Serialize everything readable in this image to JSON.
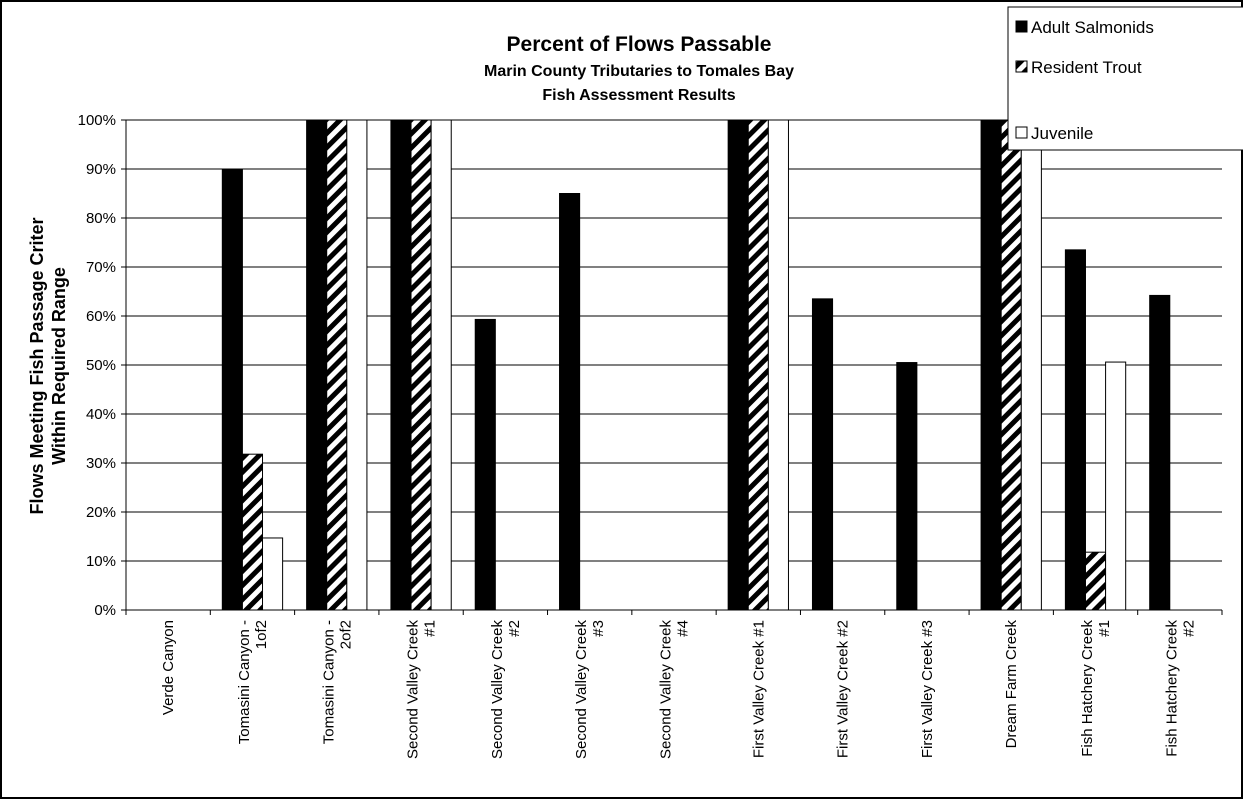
{
  "chart_data": {
    "type": "bar",
    "title": "Percent of Flows Passable",
    "subtitle": [
      "Marin County Tributaries to Tomales Bay",
      "Fish Assessment Results"
    ],
    "ylabel": [
      "Flows Meeting Fish Passage Criter",
      "Within Required Range"
    ],
    "xlabel": "",
    "ylim": [
      0,
      100
    ],
    "yticks": [
      0,
      10,
      20,
      30,
      40,
      50,
      60,
      70,
      80,
      90,
      100
    ],
    "ytick_labels": [
      "0%",
      "10%",
      "20%",
      "30%",
      "40%",
      "50%",
      "60%",
      "70%",
      "80%",
      "90%",
      "100%"
    ],
    "grid": "horizontal",
    "legend_position": "top-right",
    "categories": [
      [
        "Verde Canyon"
      ],
      [
        "Tomasini Canyon -",
        "1of2"
      ],
      [
        "Tomasini Canyon -",
        "2of2"
      ],
      [
        "Second Valley Creek",
        "#1"
      ],
      [
        "Second Valley Creek",
        "#2"
      ],
      [
        "Second Valley Creek",
        "#3"
      ],
      [
        "Second Valley Creek",
        "#4"
      ],
      [
        "First Valley Creek #1"
      ],
      [
        "First Valley Creek #2"
      ],
      [
        "First Valley Creek #3"
      ],
      [
        "Dream Farm Creek"
      ],
      [
        "Fish Hatchery Creek",
        "#1"
      ],
      [
        "Fish Hatchery Creek",
        "#2"
      ]
    ],
    "series": [
      {
        "name": "Adult Salmonids",
        "fill": "solid",
        "color": "#000000",
        "values": [
          0,
          90,
          100,
          100,
          59.3,
          85,
          0,
          100,
          63.5,
          50.5,
          100,
          73.5,
          64.2
        ]
      },
      {
        "name": "Resident Trout",
        "fill": "hatched",
        "color": "#000000",
        "values": [
          0,
          31.8,
          100,
          100,
          0,
          0,
          0,
          100,
          0,
          0,
          100,
          11.8,
          0
        ]
      },
      {
        "name": "Juvenile",
        "fill": "white",
        "color": "#ffffff",
        "values": [
          0,
          14.7,
          100,
          100,
          0,
          0,
          0,
          100,
          0,
          0,
          100,
          50.6,
          0
        ]
      }
    ]
  }
}
